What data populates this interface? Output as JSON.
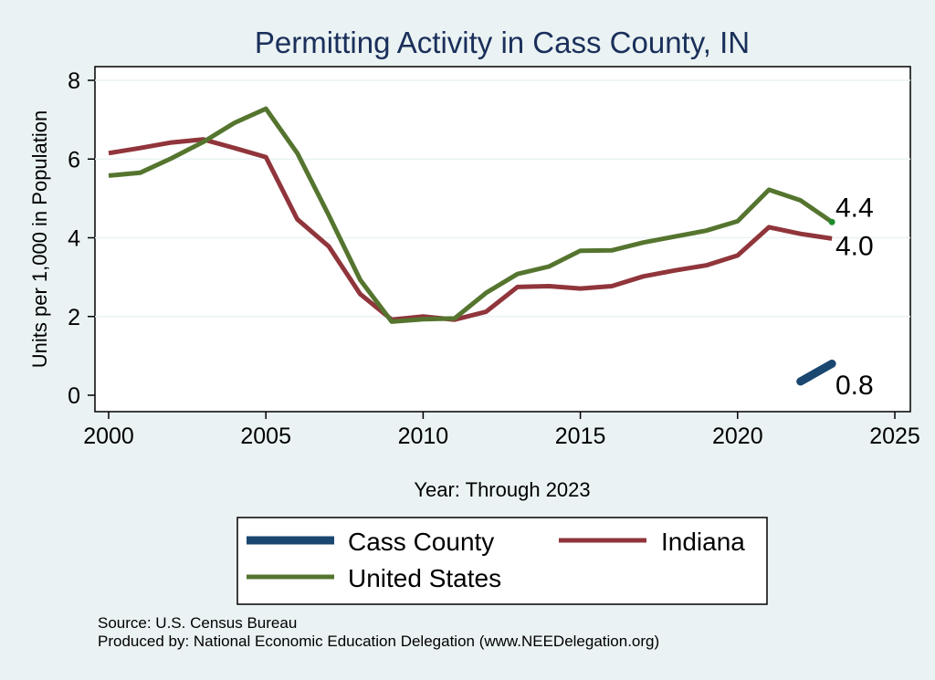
{
  "chart_data": {
    "type": "line",
    "title": "Permitting Activity in Cass County, IN",
    "xlabel": "Year: Through 2023",
    "ylabel": "Units per 1,000 in Population",
    "xlim": [
      2000,
      2025
    ],
    "ylim": [
      0,
      8
    ],
    "x_ticks": [
      "2000",
      "2005",
      "2010",
      "2015",
      "2020",
      "2025"
    ],
    "y_ticks": [
      "0",
      "2",
      "4",
      "6",
      "8"
    ],
    "grid": true,
    "legend_position": "bottom",
    "series": [
      {
        "name": "Cass County",
        "color": "#1a476f",
        "points": [
          [
            2022,
            0.35
          ],
          [
            2023,
            0.8
          ]
        ],
        "end_label": "0.8"
      },
      {
        "name": "Indiana",
        "color": "#90353b",
        "points": [
          [
            2000,
            6.15
          ],
          [
            2001,
            6.28
          ],
          [
            2002,
            6.42
          ],
          [
            2003,
            6.5
          ],
          [
            2004,
            6.28
          ],
          [
            2005,
            6.05
          ],
          [
            2006,
            4.47
          ],
          [
            2007,
            3.78
          ],
          [
            2008,
            2.57
          ],
          [
            2009,
            1.92
          ],
          [
            2010,
            2.0
          ],
          [
            2011,
            1.92
          ],
          [
            2012,
            2.12
          ],
          [
            2013,
            2.75
          ],
          [
            2014,
            2.77
          ],
          [
            2015,
            2.71
          ],
          [
            2016,
            2.77
          ],
          [
            2017,
            3.02
          ],
          [
            2018,
            3.17
          ],
          [
            2019,
            3.3
          ],
          [
            2020,
            3.55
          ],
          [
            2021,
            4.27
          ],
          [
            2022,
            4.1
          ],
          [
            2023,
            3.98
          ]
        ],
        "end_label": "4.0"
      },
      {
        "name": "United States",
        "color": "#55752f",
        "points": [
          [
            2000,
            5.58
          ],
          [
            2001,
            5.65
          ],
          [
            2002,
            6.02
          ],
          [
            2003,
            6.43
          ],
          [
            2004,
            6.92
          ],
          [
            2005,
            7.28
          ],
          [
            2006,
            6.15
          ],
          [
            2007,
            4.57
          ],
          [
            2008,
            2.93
          ],
          [
            2009,
            1.87
          ],
          [
            2010,
            1.93
          ],
          [
            2011,
            1.95
          ],
          [
            2012,
            2.6
          ],
          [
            2013,
            3.08
          ],
          [
            2014,
            3.27
          ],
          [
            2015,
            3.67
          ],
          [
            2016,
            3.68
          ],
          [
            2017,
            3.88
          ],
          [
            2018,
            4.03
          ],
          [
            2019,
            4.18
          ],
          [
            2020,
            4.42
          ],
          [
            2021,
            5.22
          ],
          [
            2022,
            4.95
          ],
          [
            2023,
            4.4
          ]
        ],
        "end_label": "4.4"
      }
    ],
    "legend_items": [
      {
        "label": "Cass County",
        "color": "#1a476f"
      },
      {
        "label": "Indiana",
        "color": "#90353b"
      },
      {
        "label": "United States",
        "color": "#55752f"
      }
    ]
  },
  "notes": {
    "source": "Source: U.S. Census Bureau",
    "produced_by": "Produced by: National Economic Education Delegation (www.NEEDelegation.org)"
  }
}
